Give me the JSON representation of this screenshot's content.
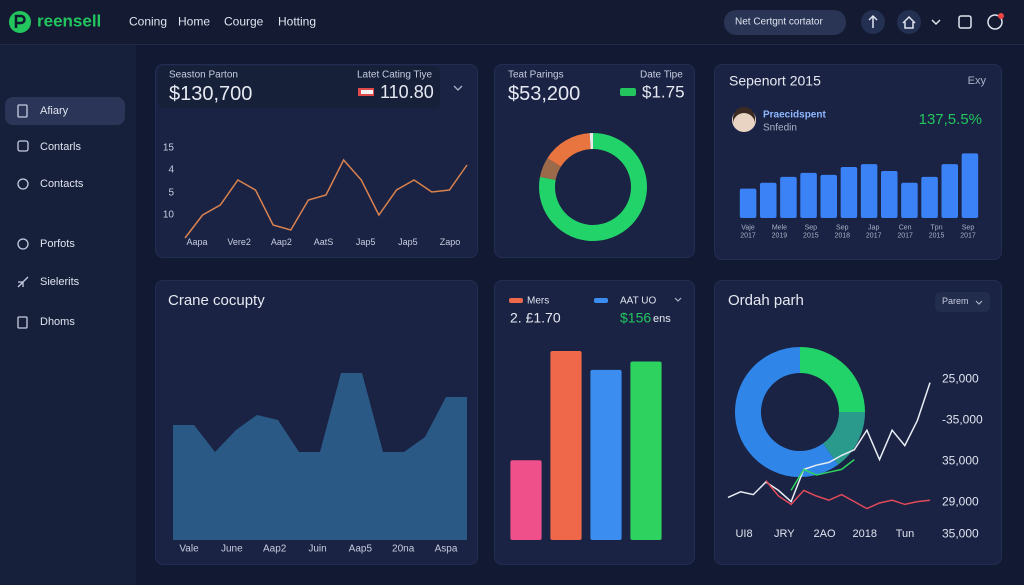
{
  "header": {
    "logo": "reensell",
    "nav": [
      "Coning",
      "Home",
      "Courge",
      "Hotting"
    ],
    "search": "Net Certgnt cortator"
  },
  "sidebar": {
    "items": [
      "Afiary",
      "Contarls",
      "Contacts",
      "Porfots",
      "Sielerits",
      "Dhoms"
    ]
  },
  "panels": [
    {
      "stats": [
        {
          "label": "Seaston Parton",
          "value": "$130,700"
        },
        {
          "label": "Latet Cating Tiye",
          "value": "110.80"
        }
      ],
      "chart": {
        "type": "line",
        "y_labels": [
          "15",
          "4",
          "5",
          "10"
        ],
        "x_labels": [
          "Aapa",
          "Vere2",
          "Aap2",
          "AatS",
          "Jap5",
          "Jap5",
          "Zapo"
        ],
        "values": [
          2,
          25,
          35,
          60,
          50,
          15,
          10,
          40,
          45,
          80,
          60,
          25,
          50,
          60,
          48,
          50,
          75
        ],
        "color": "#d9824f",
        "ylim": [
          0,
          100
        ]
      }
    },
    {
      "stats": [
        {
          "label": "Teat Parings",
          "value": "$53,200"
        },
        {
          "label": "Date Tipe",
          "value": "$1.75"
        }
      ],
      "chart": {
        "type": "donut",
        "values": [
          78,
          6,
          15,
          1
        ],
        "colors": [
          "#22d36a",
          "#9a6a4a",
          "#e8743f",
          "#e8e8e8"
        ]
      }
    },
    {
      "title": "Sepenort 2015",
      "corner": "Exy",
      "person": {
        "name": "Praecidspent",
        "sub": "Snfedin"
      },
      "change": "137,5.5%",
      "chart": {
        "type": "bar",
        "values": [
          30,
          36,
          42,
          46,
          44,
          52,
          55,
          48,
          36,
          42,
          55,
          66
        ],
        "x_labels": [
          "Vaje 2017",
          "Mele 2019",
          "Sep 2015",
          "Sep 2018",
          "Jap 2017",
          "Cen 2017",
          "Tpn 2015",
          "Sep 2017"
        ],
        "color": "#3b82f6",
        "ylim": [
          0,
          100
        ]
      }
    },
    {
      "title": "Crane cocupty",
      "chart": {
        "type": "area",
        "x_labels": [
          "Vale",
          "June",
          "Aap2",
          "Juin",
          "Aap5",
          "20na",
          "Aspa"
        ],
        "values": [
          57.5,
          57.5,
          44,
          55,
          62.5,
          60,
          44,
          44,
          83.5,
          83.5,
          44,
          44,
          51.5,
          71.5,
          71.5
        ],
        "color": "#2d5f8e",
        "ylim": [
          0,
          100
        ]
      }
    },
    {
      "legend": [
        {
          "name": "Mers",
          "color": "#f0684a"
        },
        {
          "name": "AAT UO",
          "color": "#3b8df0"
        }
      ],
      "stats": [
        "2. £1.70",
        "$156",
        "ens"
      ],
      "chart": {
        "type": "bar",
        "values": [
          38,
          90,
          81,
          85
        ],
        "colors": [
          "#f0508a",
          "#f0684a",
          "#3b8df0",
          "#2ed35f"
        ],
        "ylim": [
          0,
          100
        ]
      }
    },
    {
      "title": "Ordah parh",
      "dropdown": "Parem",
      "charts": [
        {
          "type": "donut",
          "values": [
            25,
            15,
            60
          ],
          "colors": [
            "#22d36a",
            "#2a9a8c",
            "#2f86e8"
          ]
        },
        {
          "type": "line",
          "y_labels": [
            "25,000",
            "-35,000",
            "35,000",
            "29,000",
            "35,000"
          ],
          "x_labels": [
            "UI8",
            "JRY",
            "2AO",
            "2018",
            "Tun"
          ],
          "series": [
            {
              "color": "#e8ecf4",
              "values": [
                9,
                13,
                11,
                20,
                14,
                6,
                29,
                32,
                34,
                39,
                43,
                57,
                36,
                57,
                46,
                64,
                91
              ]
            },
            {
              "color": "#e04a5a",
              "values": [
                null,
                null,
                null,
                21,
                10,
                4,
                14,
                10,
                7,
                11,
                6,
                1,
                5,
                7,
                4,
                6,
                7
              ]
            },
            {
              "color": "#2ed35f",
              "values": [
                null,
                null,
                null,
                null,
                null,
                14,
                29,
                25,
                27,
                29,
                36,
                null,
                null,
                null,
                null,
                null,
                null
              ]
            }
          ],
          "ylim": [
            0,
            100
          ]
        }
      ]
    }
  ]
}
